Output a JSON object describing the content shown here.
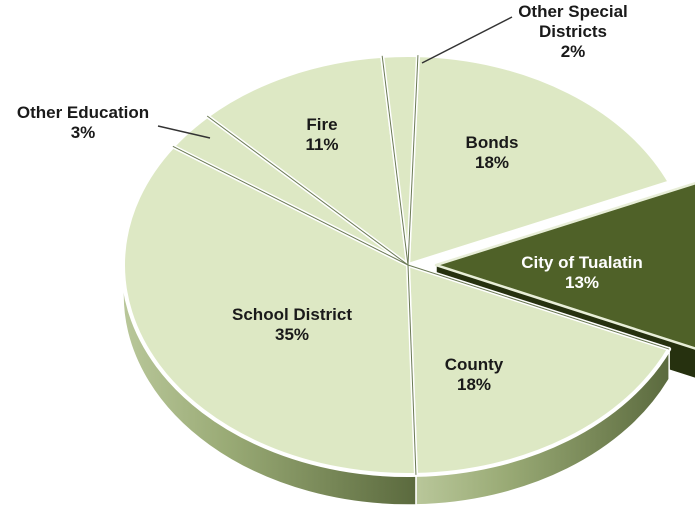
{
  "chart_data": {
    "type": "pie",
    "title": "",
    "slices": [
      {
        "label": "Bonds",
        "value": 18,
        "value_label": "18%"
      },
      {
        "label": "City of Tualatin",
        "value": 13,
        "value_label": "13%",
        "exploded": true
      },
      {
        "label": "County",
        "value": 18,
        "value_label": "18%"
      },
      {
        "label": "School District",
        "value": 35,
        "value_label": "35%"
      },
      {
        "label": "Other Education",
        "value": 3,
        "value_label": "3%"
      },
      {
        "label": "Fire",
        "value": 11,
        "value_label": "11%"
      },
      {
        "label": "Other Special Districts",
        "value": 2,
        "value_label": "2%"
      }
    ],
    "legend": "none",
    "style": "3d"
  },
  "colors": {
    "slice_fill": "#dde8c4",
    "slice_side": "#7f8f5e",
    "highlight_fill": "#4f6128",
    "highlight_side": "#26310f",
    "separator": "#ffffff",
    "label_text": "#1a1a1a",
    "highlight_text": "#ffffff"
  }
}
